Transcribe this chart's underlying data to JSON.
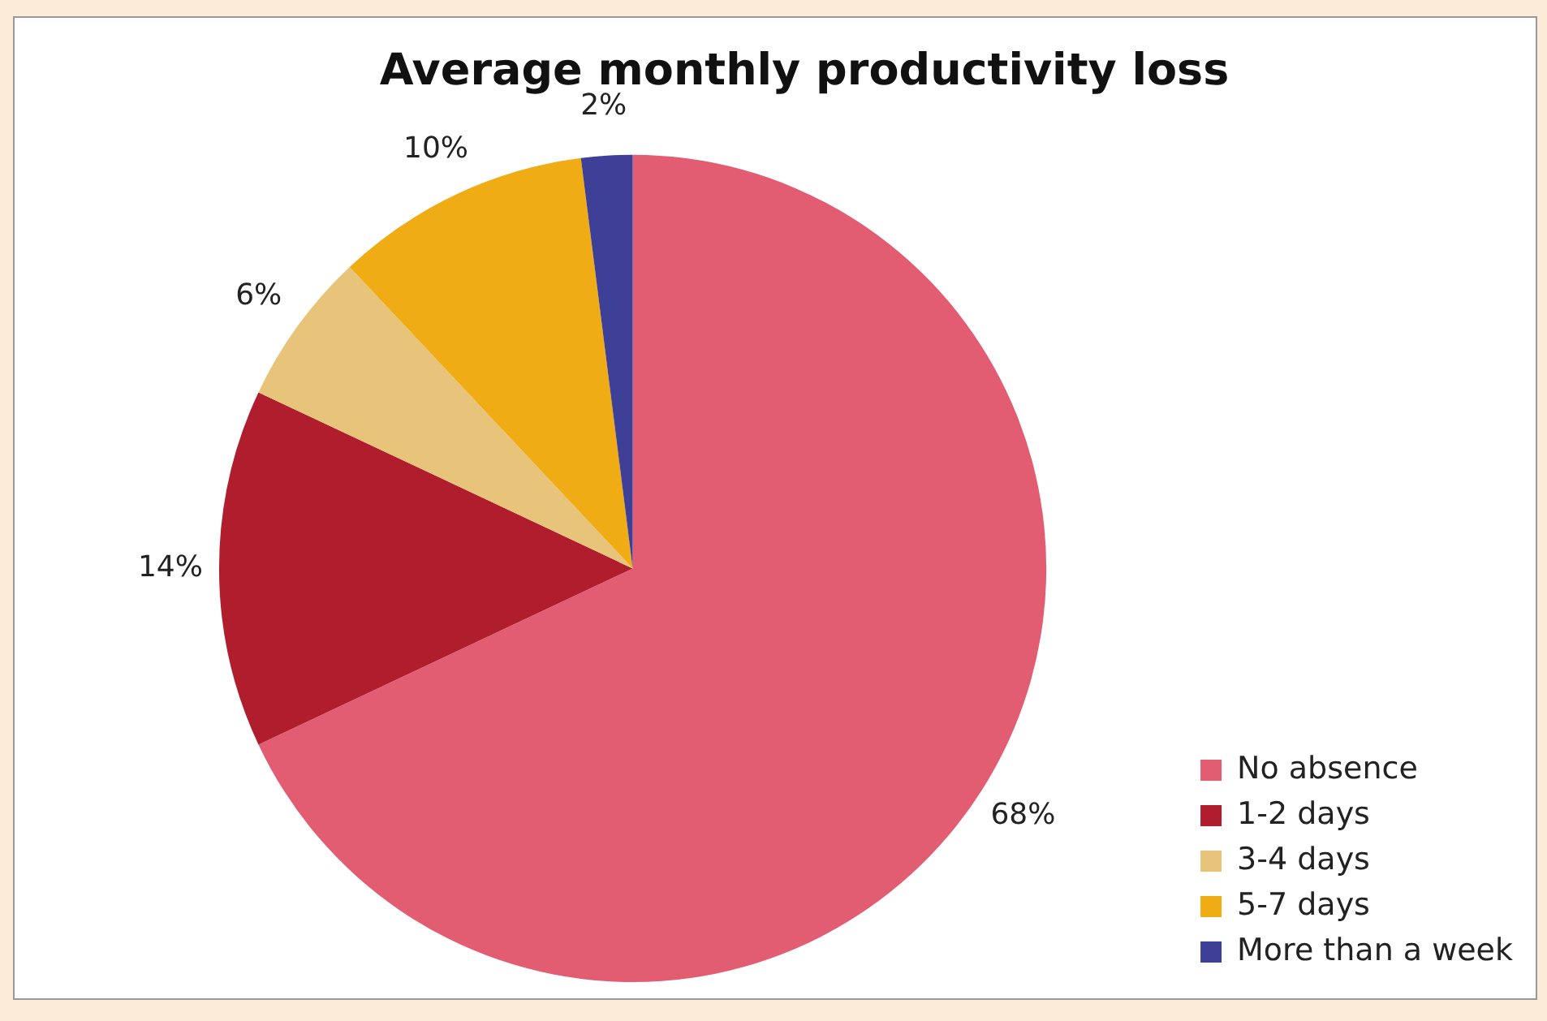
{
  "chart_data": {
    "type": "pie",
    "title": "Average monthly productivity loss",
    "categories": [
      "No absence",
      "1-2 days",
      "3-4 days",
      "5-7 days",
      "More than a week"
    ],
    "values": [
      68,
      14,
      6,
      10,
      2
    ],
    "value_labels": [
      "68%",
      "14%",
      "6%",
      "10%",
      "2%"
    ],
    "colors": [
      "#e35d72",
      "#b01e2d",
      "#e8c47a",
      "#f0ac14",
      "#3e3f96"
    ],
    "legend": "bottom right"
  }
}
